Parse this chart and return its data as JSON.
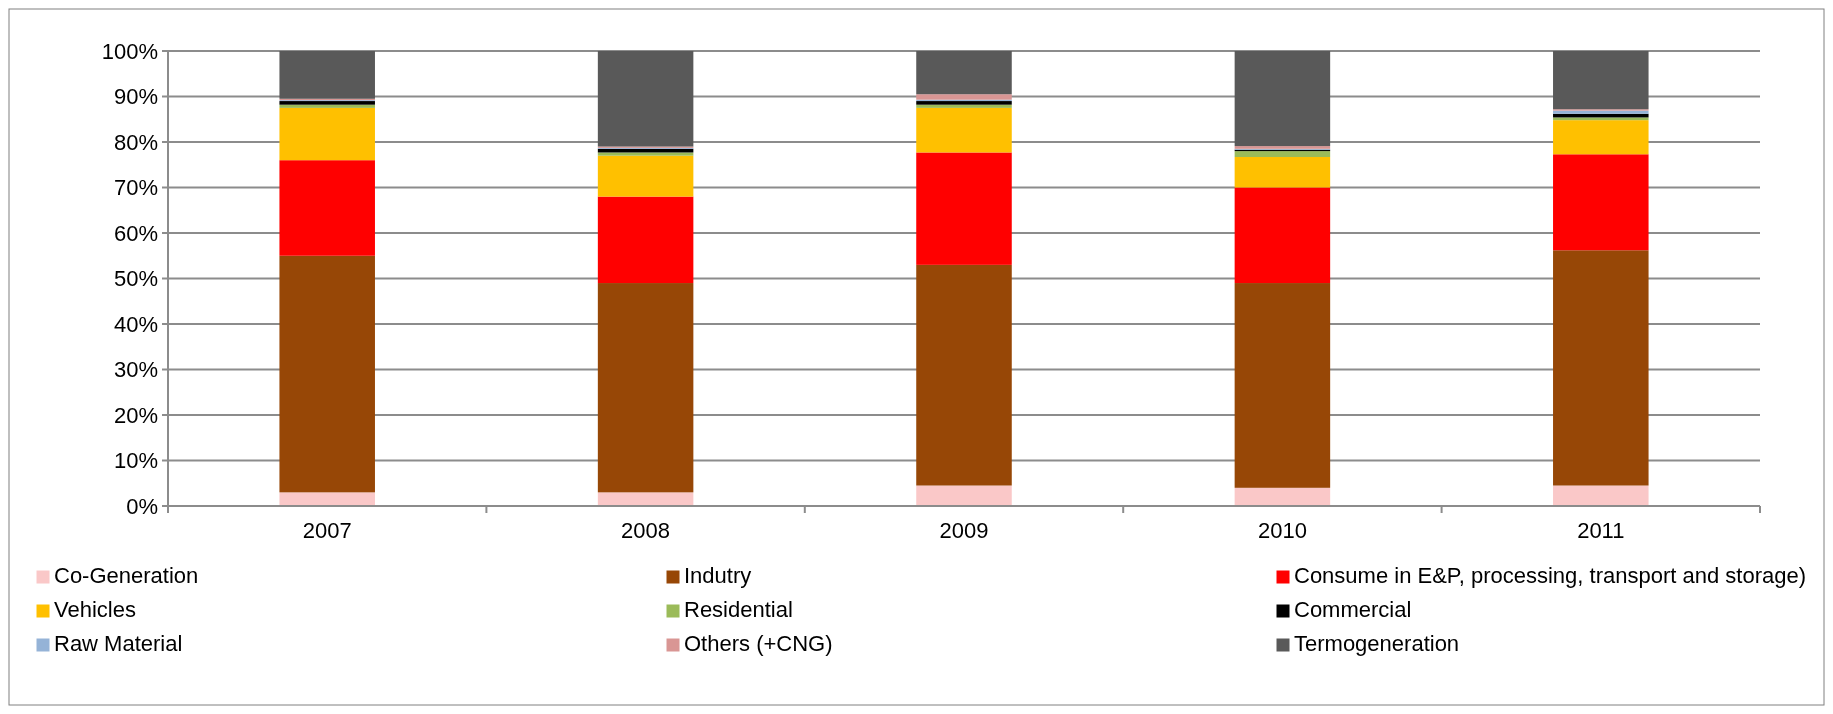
{
  "chart_data": {
    "type": "bar",
    "stacked": true,
    "categories": [
      "2007",
      "2008",
      "2009",
      "2010",
      "2011"
    ],
    "series": [
      {
        "name": "Co-Generation",
        "color": "#fac8c8",
        "values": [
          3,
          3,
          4.5,
          4,
          4.5
        ]
      },
      {
        "name": "Indutry",
        "color": "#974706",
        "values": [
          52,
          46,
          48.5,
          45,
          51.7
        ]
      },
      {
        "name": "Consume in E&P, processing, transport and storage)",
        "color": "#ff0000",
        "values": [
          21,
          19,
          24.7,
          21,
          21.1
        ]
      },
      {
        "name": "Vehicles",
        "color": "#ffc000",
        "values": [
          11.5,
          9,
          9.8,
          6.7,
          7.5
        ]
      },
      {
        "name": "Residential",
        "color": "#9bbb59",
        "values": [
          0.7,
          0.7,
          0.7,
          1.3,
          0.6
        ]
      },
      {
        "name": "Commercial",
        "color": "#000000",
        "values": [
          0.8,
          0.8,
          0.8,
          0.3,
          0.8
        ]
      },
      {
        "name": "Raw Material",
        "color": "#95b3d7",
        "values": [
          0.2,
          0.2,
          0.3,
          0.2,
          0.7
        ]
      },
      {
        "name": "Others (+CNG)",
        "color": "#d99694",
        "values": [
          0.3,
          0.3,
          1.2,
          0.6,
          0.3
        ]
      },
      {
        "name": "Termogeneration",
        "color": "#595959",
        "values": [
          10.5,
          21,
          9.5,
          20.9,
          12.8
        ]
      }
    ],
    "ylim": [
      0,
      100
    ],
    "yticks": [
      {
        "value": 0,
        "label": "0%"
      },
      {
        "value": 10,
        "label": "10%"
      },
      {
        "value": 20,
        "label": "20%"
      },
      {
        "value": 30,
        "label": "30%"
      },
      {
        "value": 40,
        "label": "40%"
      },
      {
        "value": 50,
        "label": "50%"
      },
      {
        "value": 60,
        "label": "60%"
      },
      {
        "value": 70,
        "label": "70%"
      },
      {
        "value": 80,
        "label": "80%"
      },
      {
        "value": 90,
        "label": "90%"
      },
      {
        "value": 100,
        "label": "100%"
      }
    ],
    "grid": "y",
    "legend": "bottom"
  }
}
